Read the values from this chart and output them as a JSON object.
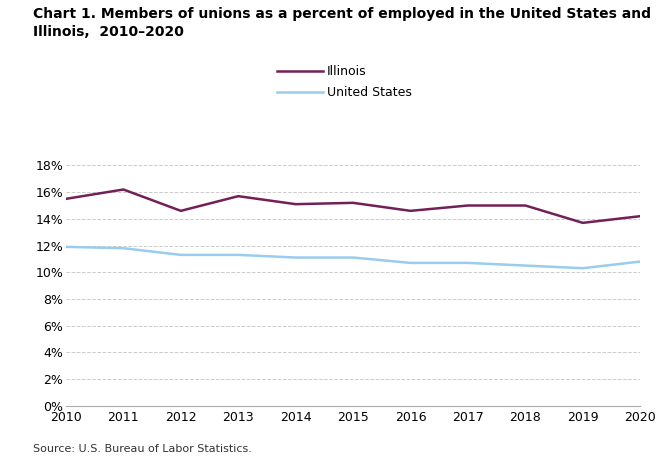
{
  "title_line1": "Chart 1. Members of unions as a percent of employed in the United States and",
  "title_line2": "Illinois,  2010–2020",
  "years": [
    2010,
    2011,
    2012,
    2013,
    2014,
    2015,
    2016,
    2017,
    2018,
    2019,
    2020
  ],
  "illinois": [
    15.5,
    16.2,
    14.6,
    15.7,
    15.1,
    15.2,
    14.6,
    15.0,
    15.0,
    13.7,
    14.2
  ],
  "us": [
    11.9,
    11.8,
    11.3,
    11.3,
    11.1,
    11.1,
    10.7,
    10.7,
    10.5,
    10.3,
    10.8
  ],
  "illinois_color": "#722057",
  "us_color": "#99ccee",
  "illinois_label": "Illinois",
  "us_label": "United States",
  "ylim": [
    0,
    19
  ],
  "yticks": [
    0,
    2,
    4,
    6,
    8,
    10,
    12,
    14,
    16,
    18
  ],
  "source": "Source: U.S. Bureau of Labor Statistics.",
  "line_width": 1.8,
  "grid_color": "#cccccc",
  "background_color": "#ffffff",
  "title_fontsize": 10,
  "tick_fontsize": 9,
  "source_fontsize": 8
}
